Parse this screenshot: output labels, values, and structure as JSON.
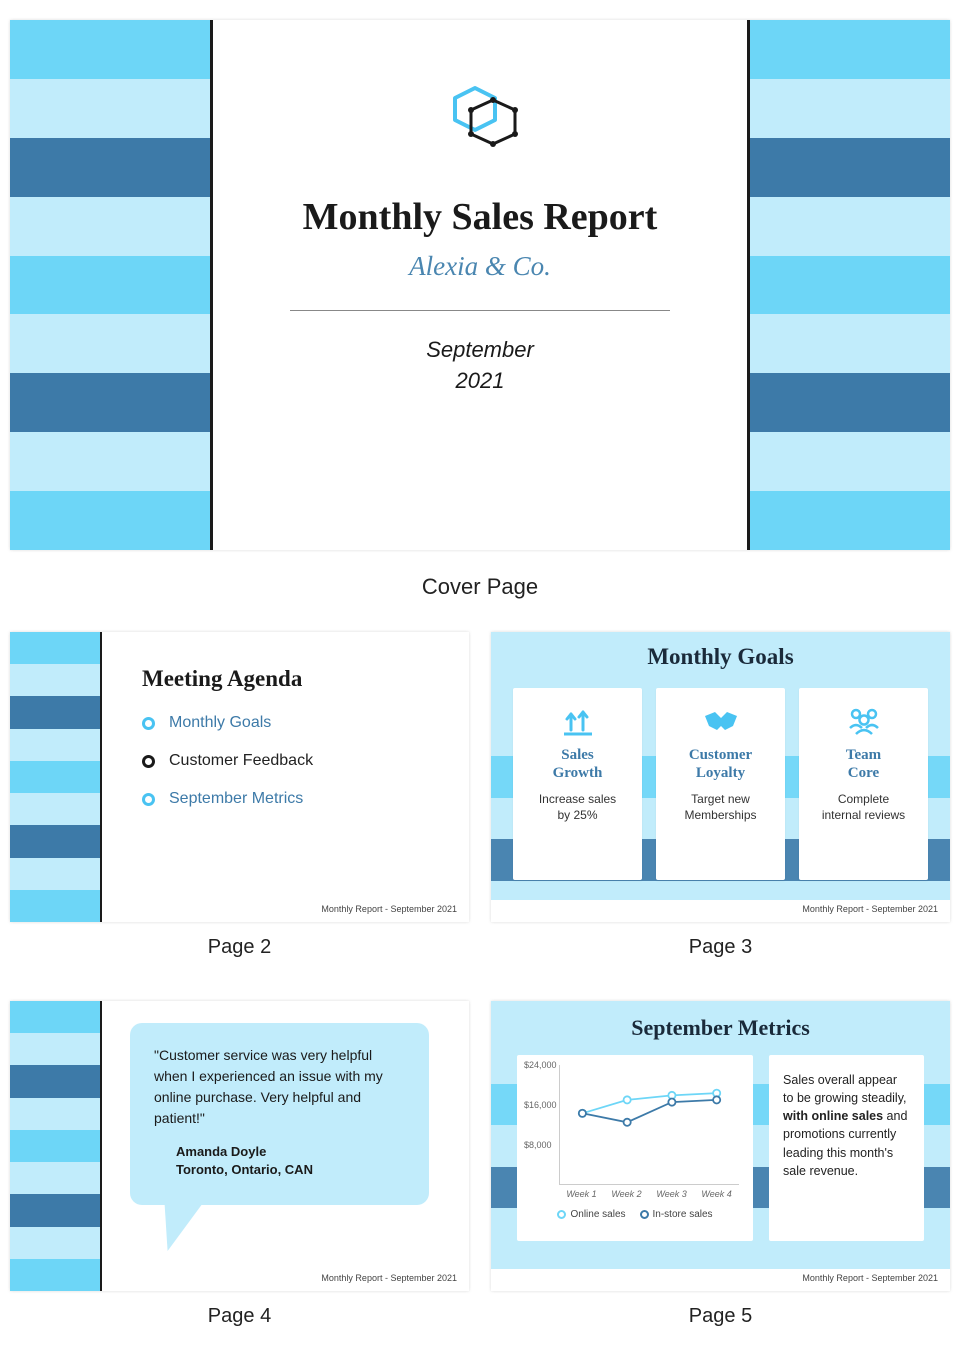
{
  "colors": {
    "sky": "#6dd6f7",
    "pale": "#c1ecfb",
    "steel": "#3d7aa8",
    "ink": "#1a1a1a",
    "accent": "#49c3f2"
  },
  "cover": {
    "title": "Monthly Sales Report",
    "title_fontsize": 38,
    "subtitle": "Alexia & Co.",
    "subtitle_fontsize": 27,
    "subtitle_color": "#4a86b0",
    "period_line1": "September",
    "period_line2": "2021",
    "period_fontsize": 22,
    "hr_width": 380,
    "caption": "Cover Page",
    "stripes": [
      "#6dd6f7",
      "#c1ecfb",
      "#3d7aa8",
      "#c1ecfb",
      "#6dd6f7",
      "#c1ecfb",
      "#3d7aa8",
      "#c1ecfb",
      "#6dd6f7"
    ]
  },
  "footer_note": "Monthly Report - September 2021",
  "page2": {
    "caption": "Page 2",
    "title": "Meeting Agenda",
    "items": [
      {
        "label": "Monthly Goals",
        "ring_color": "#49c3f2",
        "text_color": "#3d7aa8"
      },
      {
        "label": "Customer Feedback",
        "ring_color": "#1a1a1a",
        "text_color": "#222222"
      },
      {
        "label": "September Metrics",
        "ring_color": "#49c3f2",
        "text_color": "#3d7aa8"
      }
    ],
    "stripes": [
      "#6dd6f7",
      "#c1ecfb",
      "#3d7aa8",
      "#c1ecfb",
      "#6dd6f7",
      "#c1ecfb",
      "#3d7aa8",
      "#c1ecfb",
      "#6dd6f7"
    ]
  },
  "page3": {
    "caption": "Page 3",
    "title": "Monthly Goals",
    "bg_stripes": [
      "#c1ecfb",
      "#c1ecfb",
      "#c1ecfb",
      "#6dd6f7",
      "#c1ecfb",
      "#3d7aa8",
      "#c1ecfb"
    ],
    "cards": [
      {
        "icon": "arrows-up",
        "name": "Sales\nGrowth",
        "desc": "Increase sales\nby 25%"
      },
      {
        "icon": "handshake",
        "name": "Customer\nLoyalty",
        "desc": "Target new\nMemberships"
      },
      {
        "icon": "team",
        "name": "Team\nCore",
        "desc": "Complete\ninternal reviews"
      }
    ]
  },
  "page4": {
    "caption": "Page 4",
    "quote": "\"Customer service was very helpful when I experienced an issue with my online purchase. Very helpful and patient!\"",
    "author_name": "Amanda Doyle",
    "author_loc": "Toronto, Ontario, CAN",
    "stripes": [
      "#6dd6f7",
      "#c1ecfb",
      "#3d7aa8",
      "#c1ecfb",
      "#6dd6f7",
      "#c1ecfb",
      "#3d7aa8",
      "#c1ecfb",
      "#6dd6f7"
    ]
  },
  "page5": {
    "caption": "Page 5",
    "title": "September Metrics",
    "bg_stripes": [
      "#c1ecfb",
      "#c1ecfb",
      "#6dd6f7",
      "#c1ecfb",
      "#3d7aa8",
      "#c1ecfb",
      "#c1ecfb"
    ],
    "summary_pre": "Sales overall appear to be growing steadily, ",
    "summary_bold": "with online sales",
    "summary_post": " and promotions currently leading this month's sale revenue.",
    "chart": {
      "type": "line",
      "ylim": [
        0,
        24000
      ],
      "ylabels": [
        "$24,000",
        "$16,000",
        "$8,000"
      ],
      "yvals": [
        24000,
        16000,
        8000
      ],
      "xlabels": [
        "Week 1",
        "Week 2",
        "Week 3",
        "Week 4"
      ],
      "series": [
        {
          "name": "Online sales",
          "color": "#6dd6f7",
          "values": [
            14500,
            17500,
            18500,
            19000
          ]
        },
        {
          "name": "In-store sales",
          "color": "#3d7aa8",
          "values": [
            14500,
            12500,
            17000,
            17500
          ]
        }
      ],
      "line_width": 2,
      "marker_radius": 4
    }
  }
}
